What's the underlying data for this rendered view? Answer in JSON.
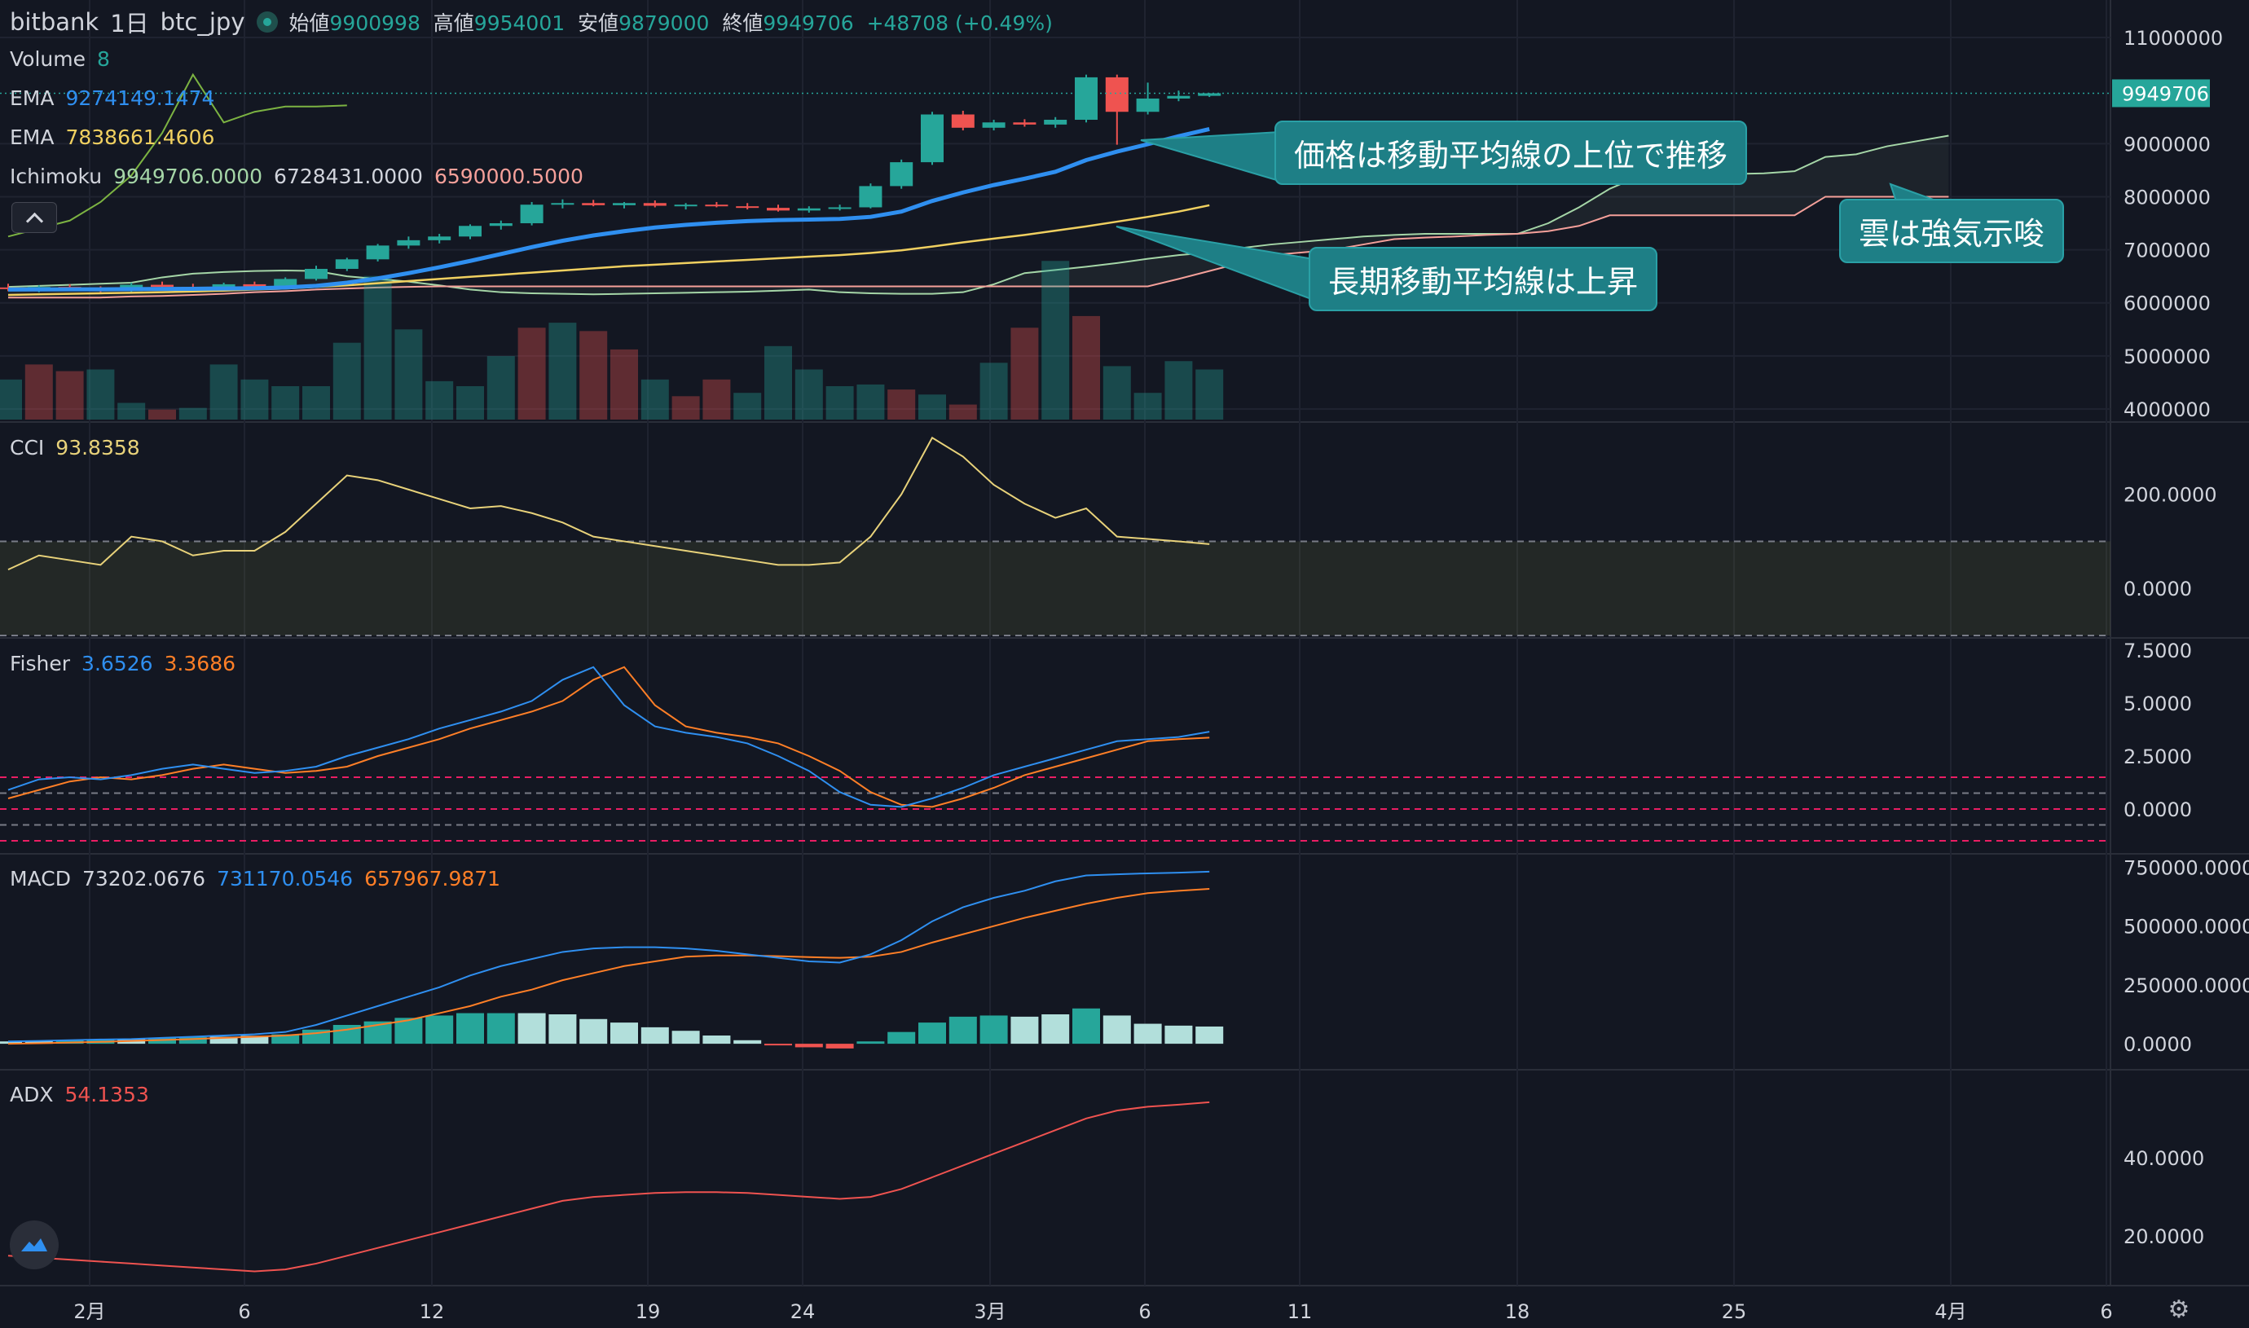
{
  "header": {
    "exchange": "bitbank",
    "interval": "1日",
    "symbol": "btc_jpy",
    "open_label": "始値",
    "open": "9900998",
    "high_label": "高値",
    "high": "9954001",
    "low_label": "安値",
    "low": "9879000",
    "close_label": "終値",
    "close": "9949706",
    "change": "+48708 (+0.49%)"
  },
  "legends": {
    "volume": {
      "label": "Volume",
      "value": "8"
    },
    "ema1": {
      "label": "EMA",
      "value": "9274149.1474"
    },
    "ema2": {
      "label": "EMA",
      "value": "7838661.4606"
    },
    "ichimoku": {
      "label": "Ichimoku",
      "v1": "9949706.0000",
      "v2": "6728431.0000",
      "v3": "6590000.5000"
    },
    "cci": {
      "label": "CCI",
      "value": "93.8358"
    },
    "fisher": {
      "label": "Fisher",
      "v1": "3.6526",
      "v2": "3.3686"
    },
    "macd": {
      "label": "MACD",
      "v1": "73202.0676",
      "v2": "731170.0546",
      "v3": "657967.9871"
    },
    "adx": {
      "label": "ADX",
      "value": "54.1353"
    }
  },
  "annotations": {
    "a1": "価格は移動平均線の上位で推移",
    "a2": "長期移動平均線は上昇",
    "a3": "雲は強気示唆"
  },
  "colors": {
    "bg": "#131722",
    "grid": "#2a2e39",
    "up": "#26a69a",
    "down": "#ef5350",
    "ema_fast": "#2f8ff0",
    "ema_slow": "#f0d060",
    "span_a": "#a5d6a7",
    "span_b": "#f5a09a",
    "cci": "#e8d27a",
    "fisher": "#2f8ff0",
    "trigger": "#ff7f27",
    "adx": "#ef5350",
    "macd_line": "#2f8ff0",
    "signal_line": "#ff7f27",
    "label_bg": "#26a69a"
  },
  "chart_data": {
    "type": "candlestick",
    "x_ticks": [
      "2月",
      "6",
      "12",
      "19",
      "24",
      "3月",
      "6",
      "11",
      "18",
      "25",
      "4月",
      "6"
    ],
    "price": {
      "axis_ticks": [
        "11000000",
        "9000000",
        "8000000",
        "7000000",
        "6000000",
        "5000000",
        "4000000"
      ],
      "ylim": [
        3800000,
        11400000
      ],
      "last_price": "9949706",
      "candles": [
        [
          6290000,
          6360000,
          6220000,
          6260000
        ],
        [
          6260000,
          6330000,
          6200000,
          6300000
        ],
        [
          6300000,
          6350000,
          6230000,
          6250000
        ],
        [
          6250000,
          6310000,
          6200000,
          6220000
        ],
        [
          6220000,
          6380000,
          6200000,
          6340000
        ],
        [
          6340000,
          6400000,
          6250000,
          6300000
        ],
        [
          6300000,
          6360000,
          6220000,
          6280000
        ],
        [
          6280000,
          6380000,
          6250000,
          6350000
        ],
        [
          6350000,
          6400000,
          6280000,
          6310000
        ],
        [
          6310000,
          6480000,
          6290000,
          6450000
        ],
        [
          6450000,
          6700000,
          6420000,
          6640000
        ],
        [
          6640000,
          6850000,
          6600000,
          6820000
        ],
        [
          6820000,
          7110000,
          6780000,
          7080000
        ],
        [
          7080000,
          7250000,
          7020000,
          7180000
        ],
        [
          7180000,
          7300000,
          7120000,
          7250000
        ],
        [
          7250000,
          7480000,
          7200000,
          7450000
        ],
        [
          7450000,
          7550000,
          7380000,
          7500000
        ],
        [
          7500000,
          7900000,
          7460000,
          7850000
        ],
        [
          7850000,
          7950000,
          7780000,
          7880000
        ],
        [
          7880000,
          7940000,
          7820000,
          7840000
        ],
        [
          7840000,
          7900000,
          7780000,
          7880000
        ],
        [
          7880000,
          7930000,
          7800000,
          7830000
        ],
        [
          7830000,
          7880000,
          7760000,
          7850000
        ],
        [
          7850000,
          7900000,
          7800000,
          7820000
        ],
        [
          7820000,
          7880000,
          7760000,
          7790000
        ],
        [
          7790000,
          7850000,
          7720000,
          7740000
        ],
        [
          7740000,
          7820000,
          7700000,
          7780000
        ],
        [
          7780000,
          7850000,
          7740000,
          7800000
        ],
        [
          7800000,
          8250000,
          7780000,
          8200000
        ],
        [
          8200000,
          8700000,
          8150000,
          8650000
        ],
        [
          8650000,
          9600000,
          8600000,
          9550000
        ],
        [
          9550000,
          9620000,
          9250000,
          9300000
        ],
        [
          9300000,
          9450000,
          9250000,
          9400000
        ],
        [
          9400000,
          9460000,
          9320000,
          9360000
        ],
        [
          9360000,
          9500000,
          9300000,
          9450000
        ],
        [
          9450000,
          10300000,
          9400000,
          10250000
        ],
        [
          10250000,
          10300000,
          8980000,
          9600000
        ],
        [
          9600000,
          10150000,
          9550000,
          9850000
        ],
        [
          9850000,
          10000000,
          9800000,
          9900000
        ],
        [
          9900998,
          9954001,
          9879000,
          9949706
        ]
      ],
      "ema_fast": [
        6250000,
        6252000,
        6255000,
        6255000,
        6258000,
        6262000,
        6265000,
        6270000,
        6275000,
        6290000,
        6320000,
        6380000,
        6460000,
        6560000,
        6670000,
        6790000,
        6920000,
        7050000,
        7170000,
        7270000,
        7350000,
        7420000,
        7470000,
        7510000,
        7540000,
        7560000,
        7570000,
        7580000,
        7620000,
        7720000,
        7920000,
        8080000,
        8220000,
        8340000,
        8470000,
        8690000,
        8850000,
        8990000,
        9140000,
        9274149
      ],
      "ema_slow": [
        6150000,
        6160000,
        6170000,
        6180000,
        6190000,
        6200000,
        6215000,
        6230000,
        6250000,
        6270000,
        6300000,
        6330000,
        6370000,
        6410000,
        6450000,
        6490000,
        6530000,
        6570000,
        6610000,
        6650000,
        6690000,
        6720000,
        6750000,
        6780000,
        6810000,
        6840000,
        6870000,
        6900000,
        6940000,
        6990000,
        7060000,
        7140000,
        7210000,
        7280000,
        7360000,
        7440000,
        7530000,
        7620000,
        7720000,
        7838661
      ],
      "span_a": [
        6300000,
        6320000,
        6340000,
        6360000,
        6380000,
        6480000,
        6550000,
        6580000,
        6600000,
        6610000,
        6600000,
        6500000,
        6450000,
        6400000,
        6330000,
        6250000,
        6200000,
        6180000,
        6170000,
        6160000,
        6170000,
        6180000,
        6190000,
        6200000,
        6210000,
        6230000,
        6250000,
        6200000,
        6180000,
        6170000,
        6170000,
        6200000,
        6350000,
        6560000,
        6620000,
        6680000,
        6750000,
        6830000,
        6900000,
        6950000,
        7030000,
        7100000,
        7150000,
        7200000,
        7250000,
        7280000,
        7300000,
        7300000,
        7300000,
        7300000,
        7500000,
        7800000,
        8150000,
        8400000,
        8420000,
        8420000,
        8430000,
        8440000,
        8480000,
        8750000,
        8800000,
        8950000,
        9050000,
        9150000
      ],
      "span_b": [
        6100000,
        6100000,
        6100000,
        6100000,
        6120000,
        6130000,
        6150000,
        6170000,
        6200000,
        6220000,
        6250000,
        6270000,
        6290000,
        6300000,
        6310000,
        6310000,
        6310000,
        6310000,
        6310000,
        6310000,
        6310000,
        6310000,
        6310000,
        6310000,
        6310000,
        6310000,
        6310000,
        6310000,
        6310000,
        6310000,
        6310000,
        6310000,
        6310000,
        6310000,
        6310000,
        6310000,
        6310000,
        6310000,
        6450000,
        6600000,
        6750000,
        6900000,
        6950000,
        7000000,
        7100000,
        7200000,
        7230000,
        7250000,
        7280000,
        7300000,
        7350000,
        7450000,
        7650000,
        7650000,
        7650000,
        7650000,
        7650000,
        7650000,
        7650000,
        8000000,
        8000000,
        8000000,
        8000000,
        8000000
      ],
      "chikou": [
        7250000,
        7400000,
        7550000,
        7900000,
        8400000,
        9200000,
        10300000,
        9400000,
        9600000,
        9700000,
        9700000,
        9720000
      ]
    },
    "volume": {
      "ylim": [
        0,
        100
      ],
      "up": [
        true,
        false,
        false,
        true,
        true,
        false,
        true,
        true,
        true,
        true,
        true,
        true,
        true,
        true,
        true,
        true,
        true,
        false,
        true,
        false,
        false,
        true,
        false,
        false,
        true,
        true,
        true,
        true,
        true,
        false,
        true,
        false,
        true,
        false,
        true,
        false,
        true,
        true,
        true,
        true
      ],
      "values": [
        24,
        33,
        29,
        30,
        10,
        6,
        7,
        33,
        24,
        20,
        20,
        46,
        86,
        54,
        23,
        20,
        38,
        55,
        58,
        53,
        42,
        24,
        14,
        24,
        16,
        44,
        30,
        20,
        21,
        18,
        15,
        9,
        34,
        55,
        95,
        62,
        32,
        16,
        35,
        30
      ]
    },
    "cci": {
      "axis_ticks": [
        "200.0000",
        "0.0000"
      ],
      "ylim": [
        -100,
        350
      ],
      "overbought": 100,
      "oversold": -100,
      "values": [
        40,
        70,
        60,
        50,
        110,
        100,
        70,
        80,
        80,
        120,
        180,
        240,
        230,
        210,
        190,
        170,
        175,
        160,
        140,
        110,
        100,
        90,
        80,
        70,
        60,
        50,
        50,
        55,
        110,
        200,
        320,
        280,
        220,
        180,
        150,
        170,
        110,
        105,
        100,
        94
      ]
    },
    "fisher": {
      "axis_ticks": [
        "7.5000",
        "5.0000",
        "2.5000",
        "0.0000"
      ],
      "ylim": [
        -2,
        8
      ],
      "levels": [
        1.5,
        0.75,
        0,
        -0.75,
        -1.5
      ],
      "fisher": [
        0.9,
        1.4,
        1.5,
        1.4,
        1.6,
        1.9,
        2.1,
        1.9,
        1.7,
        1.8,
        2.0,
        2.5,
        2.9,
        3.3,
        3.8,
        4.2,
        4.6,
        5.1,
        6.1,
        6.7,
        4.9,
        3.9,
        3.6,
        3.4,
        3.1,
        2.5,
        1.8,
        0.8,
        0.2,
        0.1,
        0.5,
        1.0,
        1.6,
        2.0,
        2.4,
        2.8,
        3.2,
        3.3,
        3.4,
        3.65
      ],
      "trigger": [
        0.5,
        0.9,
        1.3,
        1.5,
        1.4,
        1.6,
        1.9,
        2.1,
        1.9,
        1.7,
        1.8,
        2.0,
        2.5,
        2.9,
        3.3,
        3.8,
        4.2,
        4.6,
        5.1,
        6.1,
        6.7,
        4.9,
        3.9,
        3.6,
        3.4,
        3.1,
        2.5,
        1.8,
        0.8,
        0.2,
        0.1,
        0.5,
        1.0,
        1.6,
        2.0,
        2.4,
        2.8,
        3.2,
        3.3,
        3.37
      ]
    },
    "macd": {
      "axis_ticks": [
        "750000.0000",
        "500000.0000",
        "250000.0000",
        "0.0000"
      ],
      "ylim": [
        -100000,
        800000
      ],
      "macd": [
        10000,
        12000,
        15000,
        18000,
        20000,
        25000,
        30000,
        35000,
        40000,
        50000,
        80000,
        120000,
        160000,
        200000,
        240000,
        290000,
        330000,
        360000,
        390000,
        405000,
        410000,
        410000,
        405000,
        395000,
        380000,
        365000,
        350000,
        345000,
        380000,
        440000,
        520000,
        580000,
        620000,
        650000,
        690000,
        715000,
        720000,
        724000,
        727000,
        731170
      ],
      "signal": [
        0,
        2000,
        5000,
        8000,
        12000,
        16000,
        20000,
        25000,
        30000,
        35000,
        45000,
        60000,
        80000,
        100000,
        130000,
        160000,
        200000,
        230000,
        270000,
        300000,
        330000,
        350000,
        370000,
        375000,
        375000,
        372000,
        368000,
        365000,
        370000,
        390000,
        430000,
        465000,
        500000,
        535000,
        565000,
        595000,
        620000,
        640000,
        650000,
        657968
      ],
      "hist": [
        10000,
        12000,
        15000,
        18000,
        20000,
        25000,
        28000,
        30000,
        34000,
        40000,
        60000,
        80000,
        95000,
        110000,
        120000,
        130000,
        130000,
        130000,
        125000,
        105000,
        90000,
        70000,
        55000,
        35000,
        15000,
        -5000,
        -15000,
        -20000,
        10000,
        50000,
        90000,
        115000,
        120000,
        115000,
        125000,
        150000,
        120000,
        85000,
        77000,
        73202
      ],
      "hist_color": [
        "#b2dfdb",
        "#b2dfdb",
        "#26a69a",
        "#26a69a",
        "#b2dfdb",
        "#26a69a",
        "#26a69a",
        "#b2dfdb",
        "#b2dfdb",
        "#26a69a",
        "#26a69a",
        "#26a69a",
        "#26a69a",
        "#26a69a",
        "#26a69a",
        "#26a69a",
        "#26a69a",
        "#b2dfdb",
        "#b2dfdb",
        "#b2dfdb",
        "#b2dfdb",
        "#b2dfdb",
        "#b2dfdb",
        "#b2dfdb",
        "#b2dfdb",
        "#ef5350",
        "#ef5350",
        "#ef5350",
        "#26a69a",
        "#26a69a",
        "#26a69a",
        "#26a69a",
        "#26a69a",
        "#b2dfdb",
        "#b2dfdb",
        "#26a69a",
        "#b2dfdb",
        "#b2dfdb",
        "#b2dfdb",
        "#b2dfdb"
      ]
    },
    "adx": {
      "axis_ticks": [
        "40.0000",
        "20.0000"
      ],
      "ylim": [
        8,
        62
      ],
      "values": [
        15.0,
        14.5,
        14.0,
        13.5,
        13.0,
        12.5,
        12.0,
        11.5,
        11.0,
        11.5,
        13.0,
        15.0,
        17.0,
        19.0,
        21.0,
        23.0,
        25.0,
        27.0,
        29.0,
        30.0,
        30.5,
        31.0,
        31.2,
        31.2,
        31.0,
        30.5,
        30.0,
        29.5,
        30.0,
        32.0,
        35.0,
        38.0,
        41.0,
        44.0,
        47.0,
        50.0,
        52.0,
        53.0,
        53.5,
        54.1353
      ]
    }
  }
}
